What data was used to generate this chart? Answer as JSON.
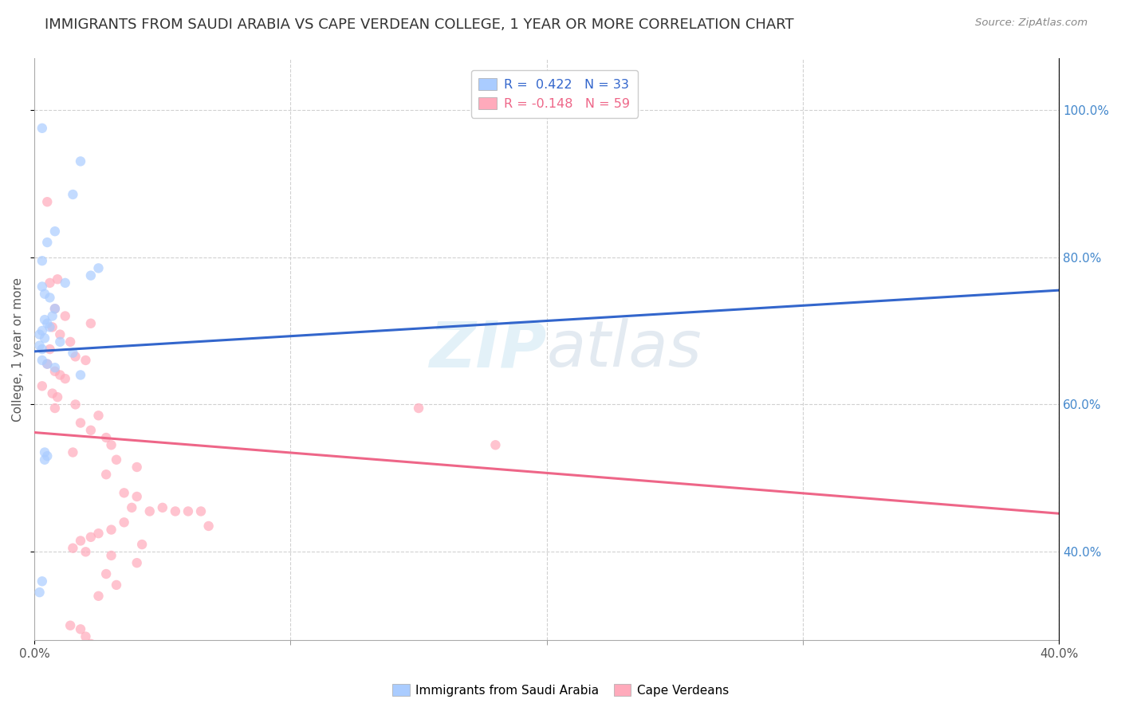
{
  "title": "IMMIGRANTS FROM SAUDI ARABIA VS CAPE VERDEAN COLLEGE, 1 YEAR OR MORE CORRELATION CHART",
  "source": "Source: ZipAtlas.com",
  "ylabel": "College, 1 year or more",
  "xmin": 0.0,
  "xmax": 0.4,
  "ymin": 0.28,
  "ymax": 1.07,
  "ytick_vals": [
    0.4,
    0.6,
    0.8,
    1.0
  ],
  "xtick_vals": [
    0.0,
    0.4
  ],
  "xtick_labels": [
    "0.0%",
    "40.0%"
  ],
  "blue_scatter": [
    [
      0.003,
      0.975
    ],
    [
      0.018,
      0.93
    ],
    [
      0.015,
      0.885
    ],
    [
      0.008,
      0.835
    ],
    [
      0.005,
      0.82
    ],
    [
      0.003,
      0.795
    ],
    [
      0.025,
      0.785
    ],
    [
      0.022,
      0.775
    ],
    [
      0.012,
      0.765
    ],
    [
      0.003,
      0.76
    ],
    [
      0.004,
      0.75
    ],
    [
      0.006,
      0.745
    ],
    [
      0.008,
      0.73
    ],
    [
      0.007,
      0.72
    ],
    [
      0.004,
      0.715
    ],
    [
      0.005,
      0.71
    ],
    [
      0.006,
      0.705
    ],
    [
      0.003,
      0.7
    ],
    [
      0.002,
      0.695
    ],
    [
      0.004,
      0.69
    ],
    [
      0.01,
      0.685
    ],
    [
      0.002,
      0.68
    ],
    [
      0.003,
      0.675
    ],
    [
      0.015,
      0.67
    ],
    [
      0.003,
      0.66
    ],
    [
      0.005,
      0.655
    ],
    [
      0.008,
      0.65
    ],
    [
      0.018,
      0.64
    ],
    [
      0.004,
      0.535
    ],
    [
      0.005,
      0.53
    ],
    [
      0.004,
      0.525
    ],
    [
      0.003,
      0.36
    ],
    [
      0.002,
      0.345
    ]
  ],
  "pink_scatter": [
    [
      0.005,
      0.875
    ],
    [
      0.009,
      0.77
    ],
    [
      0.006,
      0.765
    ],
    [
      0.008,
      0.73
    ],
    [
      0.012,
      0.72
    ],
    [
      0.022,
      0.71
    ],
    [
      0.007,
      0.705
    ],
    [
      0.01,
      0.695
    ],
    [
      0.014,
      0.685
    ],
    [
      0.006,
      0.675
    ],
    [
      0.016,
      0.665
    ],
    [
      0.02,
      0.66
    ],
    [
      0.005,
      0.655
    ],
    [
      0.008,
      0.645
    ],
    [
      0.01,
      0.64
    ],
    [
      0.012,
      0.635
    ],
    [
      0.003,
      0.625
    ],
    [
      0.007,
      0.615
    ],
    [
      0.009,
      0.61
    ],
    [
      0.016,
      0.6
    ],
    [
      0.008,
      0.595
    ],
    [
      0.025,
      0.585
    ],
    [
      0.018,
      0.575
    ],
    [
      0.022,
      0.565
    ],
    [
      0.028,
      0.555
    ],
    [
      0.03,
      0.545
    ],
    [
      0.015,
      0.535
    ],
    [
      0.032,
      0.525
    ],
    [
      0.04,
      0.515
    ],
    [
      0.028,
      0.505
    ],
    [
      0.15,
      0.595
    ],
    [
      0.18,
      0.545
    ],
    [
      0.035,
      0.48
    ],
    [
      0.04,
      0.475
    ],
    [
      0.038,
      0.46
    ],
    [
      0.045,
      0.455
    ],
    [
      0.05,
      0.46
    ],
    [
      0.06,
      0.455
    ],
    [
      0.035,
      0.44
    ],
    [
      0.068,
      0.435
    ],
    [
      0.03,
      0.43
    ],
    [
      0.025,
      0.425
    ],
    [
      0.022,
      0.42
    ],
    [
      0.018,
      0.415
    ],
    [
      0.042,
      0.41
    ],
    [
      0.015,
      0.405
    ],
    [
      0.055,
      0.455
    ],
    [
      0.065,
      0.455
    ],
    [
      0.02,
      0.4
    ],
    [
      0.03,
      0.395
    ],
    [
      0.04,
      0.385
    ],
    [
      0.028,
      0.37
    ],
    [
      0.032,
      0.355
    ],
    [
      0.025,
      0.34
    ],
    [
      0.014,
      0.3
    ],
    [
      0.018,
      0.295
    ],
    [
      0.02,
      0.285
    ],
    [
      0.022,
      0.275
    ],
    [
      0.015,
      0.265
    ]
  ],
  "blue_line_x": [
    0.0,
    0.4
  ],
  "blue_line_y": [
    0.672,
    0.755
  ],
  "pink_line_x": [
    0.0,
    0.4
  ],
  "pink_line_y": [
    0.562,
    0.452
  ],
  "scatter_alpha": 0.7,
  "scatter_size": 80,
  "dot_color_blue": "#aaccff",
  "dot_color_pink": "#ffaabb",
  "line_color_blue": "#3366cc",
  "line_color_pink": "#ee6688",
  "background_color": "#ffffff",
  "grid_color": "#cccccc",
  "title_fontsize": 13,
  "axis_label_fontsize": 11,
  "tick_fontsize": 11,
  "legend_entry_1": "R =  0.422   N = 33",
  "legend_entry_2": "R = -0.148   N = 59",
  "legend_bottom_1": "Immigrants from Saudi Arabia",
  "legend_bottom_2": "Cape Verdeans",
  "watermark_zip_color": "#bbddee",
  "watermark_atlas_color": "#bbccdd"
}
